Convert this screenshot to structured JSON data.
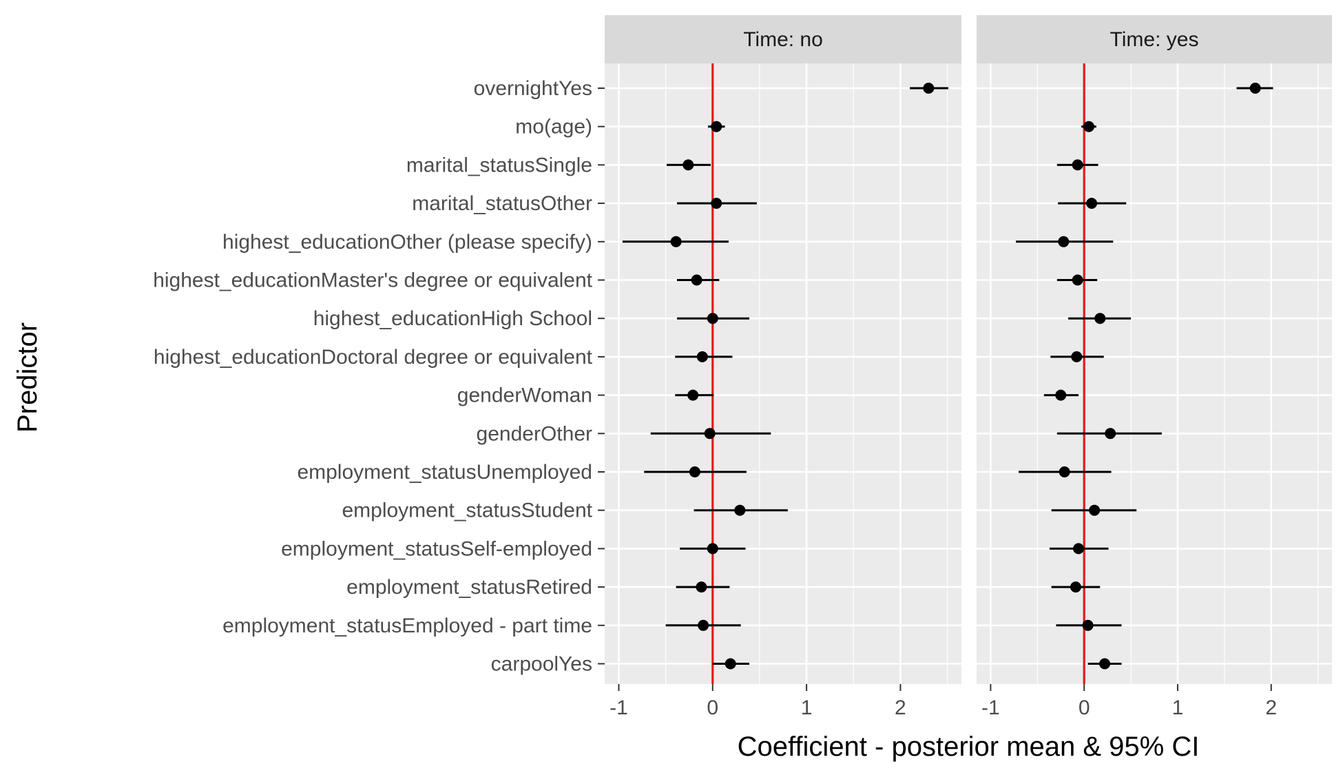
{
  "chart_data": {
    "type": "forest",
    "xlabel": "Coefficient - posterior mean & 95% CI",
    "ylabel": "Predictor",
    "xlim": [
      -1.15,
      2.65
    ],
    "xticks": [
      -1,
      0,
      1,
      2
    ],
    "xtick_labels": [
      "-1",
      "0",
      "1",
      "2"
    ],
    "reference_line": {
      "x": 0,
      "color": "#e41a1c"
    },
    "grid": true,
    "colors": {
      "panel": "#ebebeb",
      "strip": "#d9d9d9",
      "grid": "#ffffff",
      "point": "#000000",
      "reference": "#e41a1c"
    },
    "categories": [
      "overnightYes",
      "mo(age)",
      "marital_statusSingle",
      "marital_statusOther",
      "highest_educationOther (please specify)",
      "highest_educationMaster's degree or equivalent",
      "highest_educationHigh School",
      "highest_educationDoctoral degree or equivalent",
      "genderWoman",
      "genderOther",
      "employment_statusUnemployed",
      "employment_statusStudent",
      "employment_statusSelf-employed",
      "employment_statusRetired",
      "employment_statusEmployed - part time",
      "carpoolYes"
    ],
    "panels": [
      {
        "label": "Time: no",
        "mean": [
          2.3,
          0.04,
          -0.26,
          0.04,
          -0.39,
          -0.17,
          0.0,
          -0.11,
          -0.21,
          -0.03,
          -0.19,
          0.29,
          0.0,
          -0.12,
          -0.1,
          0.19
        ],
        "lower": [
          2.1,
          -0.05,
          -0.49,
          -0.38,
          -0.96,
          -0.38,
          -0.38,
          -0.4,
          -0.4,
          -0.66,
          -0.73,
          -0.2,
          -0.35,
          -0.39,
          -0.5,
          0.0
        ],
        "upper": [
          2.51,
          0.13,
          -0.02,
          0.47,
          0.17,
          0.07,
          0.39,
          0.21,
          0.01,
          0.62,
          0.36,
          0.8,
          0.35,
          0.18,
          0.3,
          0.39
        ]
      },
      {
        "label": "Time: yes",
        "mean": [
          1.83,
          0.05,
          -0.07,
          0.08,
          -0.22,
          -0.07,
          0.17,
          -0.08,
          -0.25,
          0.28,
          -0.21,
          0.11,
          -0.06,
          -0.09,
          0.04,
          0.22
        ],
        "lower": [
          1.63,
          -0.03,
          -0.29,
          -0.28,
          -0.73,
          -0.29,
          -0.17,
          -0.36,
          -0.43,
          -0.29,
          -0.7,
          -0.35,
          -0.37,
          -0.35,
          -0.3,
          0.04
        ],
        "upper": [
          2.02,
          0.13,
          0.15,
          0.45,
          0.31,
          0.14,
          0.5,
          0.21,
          -0.06,
          0.83,
          0.29,
          0.56,
          0.26,
          0.17,
          0.4,
          0.4
        ]
      }
    ]
  }
}
